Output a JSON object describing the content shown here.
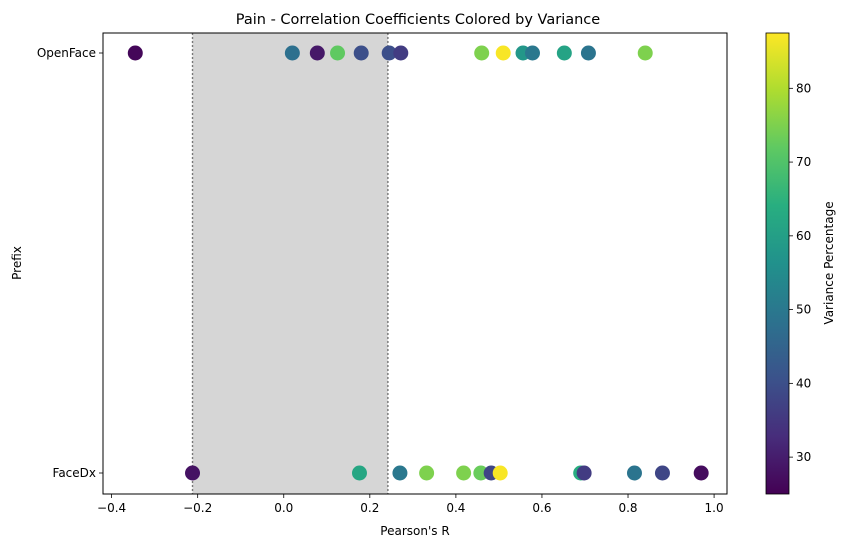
{
  "chart_data": {
    "type": "scatter",
    "title": "Pain - Correlation Coefficients Colored by Variance",
    "xlabel": "Pearson's R",
    "ylabel": "Prefix",
    "xlim": [
      -0.42,
      1.03
    ],
    "xticks": [
      -0.4,
      -0.2,
      0.0,
      0.2,
      0.4,
      0.6,
      0.8,
      1.0
    ],
    "xtick_labels": [
      "−0.4",
      "−0.2",
      "0.0",
      "0.2",
      "0.4",
      "0.6",
      "0.8",
      "1.0"
    ],
    "categories": [
      "FaceDx",
      "OpenFace"
    ],
    "grid": false,
    "shaded_band": [
      -0.212,
      0.242
    ],
    "colorbar": {
      "label": "Variance Percentage",
      "colormap": "viridis",
      "range": [
        25,
        87.5
      ],
      "ticks": [
        30,
        40,
        50,
        60,
        70,
        80
      ],
      "tick_labels": [
        "30",
        "40",
        "50",
        "60",
        "70",
        "80"
      ]
    },
    "series": [
      {
        "category": "OpenFace",
        "points": [
          {
            "x": -0.345,
            "variance": 26
          },
          {
            "x": 0.02,
            "variance": 48
          },
          {
            "x": 0.078,
            "variance": 29
          },
          {
            "x": 0.125,
            "variance": 72
          },
          {
            "x": 0.18,
            "variance": 40
          },
          {
            "x": 0.245,
            "variance": 40
          },
          {
            "x": 0.272,
            "variance": 36
          },
          {
            "x": 0.46,
            "variance": 75
          },
          {
            "x": 0.51,
            "variance": 87
          },
          {
            "x": 0.556,
            "variance": 58
          },
          {
            "x": 0.578,
            "variance": 50
          },
          {
            "x": 0.652,
            "variance": 61
          },
          {
            "x": 0.708,
            "variance": 49
          },
          {
            "x": 0.84,
            "variance": 75
          }
        ]
      },
      {
        "category": "FaceDx",
        "points": [
          {
            "x": -0.212,
            "variance": 28
          },
          {
            "x": 0.176,
            "variance": 62
          },
          {
            "x": 0.27,
            "variance": 50
          },
          {
            "x": 0.332,
            "variance": 75
          },
          {
            "x": 0.418,
            "variance": 75
          },
          {
            "x": 0.458,
            "variance": 73
          },
          {
            "x": 0.482,
            "variance": 38
          },
          {
            "x": 0.503,
            "variance": 87
          },
          {
            "x": 0.69,
            "variance": 64
          },
          {
            "x": 0.698,
            "variance": 36
          },
          {
            "x": 0.815,
            "variance": 49
          },
          {
            "x": 0.88,
            "variance": 38
          },
          {
            "x": 0.97,
            "variance": 27
          }
        ]
      }
    ]
  }
}
